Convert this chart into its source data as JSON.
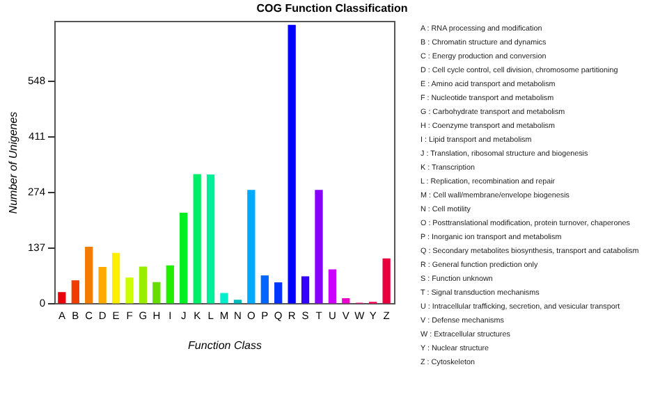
{
  "chart_data": {
    "type": "bar",
    "title": "COG Function Classification",
    "xlabel": "Function Class",
    "ylabel": "Number of Unigenes",
    "categories": [
      "A",
      "B",
      "C",
      "D",
      "E",
      "F",
      "G",
      "H",
      "I",
      "J",
      "K",
      "L",
      "M",
      "N",
      "O",
      "P",
      "Q",
      "R",
      "S",
      "T",
      "U",
      "V",
      "W",
      "Y",
      "Z"
    ],
    "values": [
      26,
      55,
      138,
      88,
      123,
      62,
      89,
      51,
      92,
      222,
      317,
      316,
      24,
      7,
      278,
      67,
      50,
      685,
      65,
      278,
      82,
      11,
      0,
      2,
      109
    ],
    "colors": [
      "#e8000b",
      "#f03c00",
      "#f57a00",
      "#ffaa00",
      "#ffee00",
      "#ccff00",
      "#99ee00",
      "#66dd00",
      "#22ee00",
      "#00ee22",
      "#00ee66",
      "#00ee99",
      "#00eecc",
      "#00bbbb",
      "#00aaff",
      "#0066ff",
      "#0033ff",
      "#0000ff",
      "#3300ff",
      "#8800ff",
      "#cc00ff",
      "#ee00cc",
      "#ff0088",
      "#ff0055",
      "#e8003c"
    ],
    "ylim": [
      0,
      696
    ],
    "yticks": [
      0,
      137,
      274,
      411,
      548
    ],
    "grid": false,
    "legend": false,
    "annotations": [
      "A : RNA processing and modification",
      "B : Chromatin structure and dynamics",
      "C : Energy production and conversion",
      "D : Cell cycle control, cell division, chromosome partitioning",
      "E : Amino acid transport and metabolism",
      "F : Nucleotide transport and metabolism",
      "G : Carbohydrate transport and metabolism",
      "H : Coenzyme transport and metabolism",
      "I : Lipid transport and metabolism",
      "J : Translation, ribosomal structure and biogenesis",
      "K : Transcription",
      "L : Replication, recombination and repair",
      "M : Cell wall/membrane/envelope biogenesis",
      "N : Cell motility",
      "O : Posttranslational modification, protein turnover, chaperones",
      "P : Inorganic ion transport and metabolism",
      "Q : Secondary metabolites biosynthesis, transport and catabolism",
      "R : General function prediction only",
      "S : Function unknown",
      "T : Signal transduction mechanisms",
      "U : Intracellular trafficking, secretion, and vesicular transport",
      "V : Defense mechanisms",
      "W : Extracellular structures",
      "Y : Nuclear structure",
      "Z : Cytoskeleton"
    ]
  }
}
